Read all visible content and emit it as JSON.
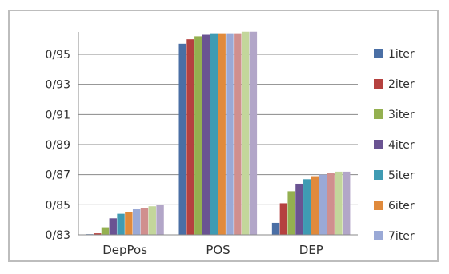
{
  "chart_data": {
    "type": "bar",
    "categories": [
      "DepPos",
      "POS",
      "DEP"
    ],
    "series": [
      {
        "name": "1iter",
        "color": "#4a6fa5",
        "values": [
          0.83,
          0.957,
          0.838
        ]
      },
      {
        "name": "2iter",
        "color": "#b5413f",
        "values": [
          0.831,
          0.96,
          0.851
        ]
      },
      {
        "name": "3iter",
        "color": "#94b050",
        "values": [
          0.835,
          0.962,
          0.859
        ]
      },
      {
        "name": "4iter",
        "color": "#6a5392",
        "values": [
          0.841,
          0.963,
          0.864
        ]
      },
      {
        "name": "5iter",
        "color": "#3f9bb3",
        "values": [
          0.844,
          0.964,
          0.867
        ]
      },
      {
        "name": "6iter",
        "color": "#e08a3c",
        "values": [
          0.845,
          0.964,
          0.869
        ]
      },
      {
        "name": "7iter",
        "color": "#9aa9d6",
        "values": [
          0.847,
          0.964,
          0.87
        ]
      },
      {
        "name": "",
        "color": "#d08f8e",
        "values": [
          0.848,
          0.964,
          0.871
        ]
      },
      {
        "name": "",
        "color": "#c3d69b",
        "values": [
          0.849,
          0.965,
          0.872
        ]
      },
      {
        "name": "",
        "color": "#b2a6c8",
        "values": [
          0.85,
          0.965,
          0.872
        ]
      }
    ],
    "yticks": [
      "0/95",
      "0/93",
      "0/91",
      "0/89",
      "0/87",
      "0/85",
      "0/83"
    ],
    "ytick_values": [
      0.95,
      0.93,
      0.91,
      0.89,
      0.87,
      0.85,
      0.83
    ],
    "ylim": [
      0.83,
      0.965
    ],
    "grid": true,
    "legend_position": "right",
    "title": "",
    "xlabel": "",
    "ylabel": ""
  }
}
